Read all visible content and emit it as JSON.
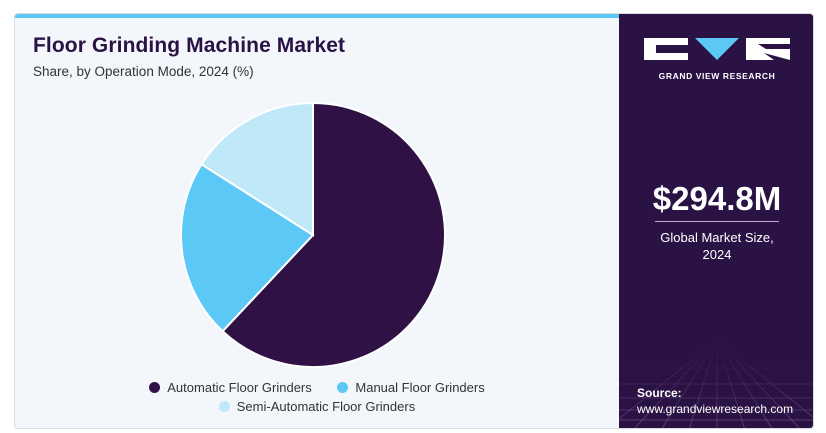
{
  "header": {
    "title": "Floor Grinding Machine Market",
    "subtitle": "Share, by Operation Mode, 2024 (%)"
  },
  "chart_data": {
    "type": "pie",
    "categories": [
      "Automatic Floor Grinders",
      "Manual Floor Grinders",
      "Semi-Automatic Floor Grinders"
    ],
    "values": [
      62,
      22,
      16
    ],
    "unit": "%",
    "colors": [
      "#2f1146",
      "#5bc8f5",
      "#bfe8f9"
    ],
    "legend_position": "bottom"
  },
  "sidebar": {
    "brand_text": "GRAND VIEW RESEARCH",
    "market_size": "$294.8M",
    "market_size_label_line1": "Global Market Size,",
    "market_size_label_line2": "2024",
    "source_label": "Source:",
    "source_url": "www.grandviewresearch.com"
  },
  "colors": {
    "brand_dark": "#2b1244",
    "accent": "#5bc8f5"
  }
}
